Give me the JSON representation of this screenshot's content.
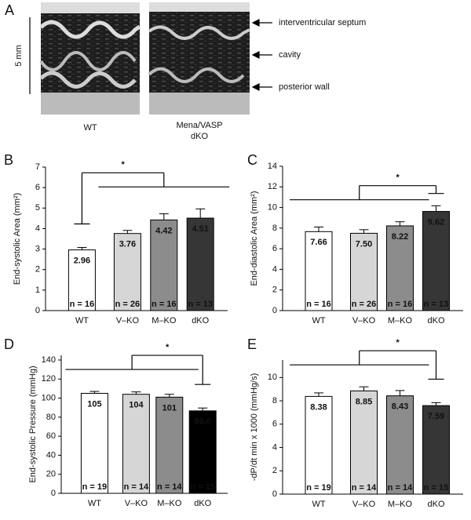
{
  "panel_a": {
    "label": "A",
    "scale": "5 mm",
    "image_labels": [
      "WT",
      "Mena/VASP",
      "dKO"
    ],
    "annotations": [
      "interventricular septum",
      "cavity",
      "posterior wall"
    ]
  },
  "chart_data": [
    {
      "type": "bar",
      "panel": "B",
      "ylabel": "End-systolic Area (mm²)",
      "categories": [
        "WT",
        "V–KO",
        "M–KO",
        "dKO"
      ],
      "values": [
        2.96,
        3.76,
        4.42,
        4.51
      ],
      "value_labels": [
        "2.96",
        "3.76",
        "4.42",
        "4.51"
      ],
      "errors": [
        0.12,
        0.15,
        0.3,
        0.45
      ],
      "n_labels": [
        "n = 16",
        "n = 26",
        "n = 16",
        "n = 13"
      ],
      "colors": [
        "#ffffff",
        "#d6d6d6",
        "#8c8c8c",
        "#363636"
      ],
      "ylim": [
        0,
        7
      ],
      "yticks": [
        0,
        1,
        2,
        3,
        4,
        5,
        6,
        7
      ],
      "annotation": "*"
    },
    {
      "type": "bar",
      "panel": "C",
      "ylabel": "End-diastolic Area (mm²)",
      "categories": [
        "WT",
        "V–KO",
        "M–KO",
        "dKO"
      ],
      "values": [
        7.66,
        7.5,
        8.22,
        9.62
      ],
      "value_labels": [
        "7.66",
        "7.50",
        "8.22",
        "9.62"
      ],
      "errors": [
        0.45,
        0.35,
        0.4,
        0.55
      ],
      "n_labels": [
        "n = 16",
        "n = 26",
        "n = 16",
        "n = 13"
      ],
      "colors": [
        "#ffffff",
        "#d6d6d6",
        "#8c8c8c",
        "#363636"
      ],
      "ylim": [
        0,
        14
      ],
      "yticks": [
        0,
        2,
        4,
        6,
        8,
        10,
        12,
        14
      ],
      "annotation": "*"
    },
    {
      "type": "bar",
      "panel": "D",
      "ylabel": "End-systolic Pressure (mmHg)",
      "categories": [
        "WT",
        "V–KO",
        "M–KO",
        "dKO"
      ],
      "values": [
        105,
        104,
        101,
        86.6
      ],
      "value_labels": [
        "105",
        "104",
        "101",
        "86.6"
      ],
      "errors": [
        2,
        2.5,
        3,
        3
      ],
      "n_labels": [
        "n = 19",
        "n = 14",
        "n = 14",
        "n = 15"
      ],
      "colors": [
        "#ffffff",
        "#d6d6d6",
        "#8c8c8c",
        "#000000"
      ],
      "ylim": [
        0,
        145
      ],
      "yticks": [
        0,
        20,
        40,
        60,
        80,
        100,
        120,
        140
      ],
      "annotation": "*"
    },
    {
      "type": "bar",
      "panel": "E",
      "ylabel": "-dP/dt min x 1000 (mmHg/s)",
      "categories": [
        "WT",
        "V–KO",
        "M–KO",
        "dKO"
      ],
      "values": [
        8.38,
        8.85,
        8.43,
        7.59
      ],
      "value_labels": [
        "8.38",
        "8.85",
        "8.43",
        "7.59"
      ],
      "errors": [
        0.3,
        0.35,
        0.45,
        0.25
      ],
      "n_labels": [
        "n = 19",
        "n = 14",
        "n = 14",
        "n = 15"
      ],
      "colors": [
        "#ffffff",
        "#d6d6d6",
        "#8c8c8c",
        "#363636"
      ],
      "ylim": [
        0,
        11.5
      ],
      "yticks": [
        0,
        2,
        4,
        6,
        8,
        10
      ],
      "annotation": "*"
    }
  ]
}
